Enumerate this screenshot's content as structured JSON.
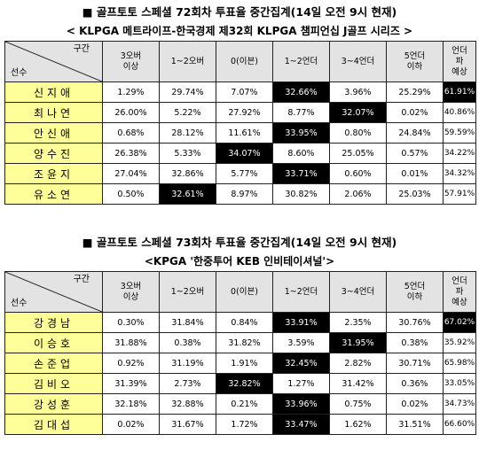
{
  "table1": {
    "title": "■ 골프토토 스페셜 72회차 투표율 중간집계(14일 오전 9시 현재)",
    "subtitle": "< KLPGA 메트라이프-한국경제 제32회 KLPGA 챔피언십 J골프 시리즈 >",
    "corner_top": "구간",
    "corner_bottom": "선수",
    "headers": [
      "3오버\n이상",
      "1~2오버",
      "0(이븐)",
      "1~2언더",
      "3~4언더",
      "5언더\n이하",
      "언더\n파\n예상"
    ],
    "rows": [
      {
        "name": "신지애",
        "values": [
          "1.29%",
          "29.74%",
          "7.07%",
          "32.66%",
          "3.96%",
          "25.29%",
          "61.91%"
        ],
        "highlight": [
          3,
          6
        ]
      },
      {
        "name": "최나연",
        "values": [
          "26.00%",
          "5.22%",
          "27.92%",
          "8.77%",
          "32.07%",
          "0.02%",
          "40.86%"
        ],
        "highlight": [
          4
        ]
      },
      {
        "name": "안신애",
        "values": [
          "0.68%",
          "28.12%",
          "11.61%",
          "33.95%",
          "0.80%",
          "24.84%",
          "59.59%"
        ],
        "highlight": [
          3
        ]
      },
      {
        "name": "양수진",
        "values": [
          "26.38%",
          "5.33%",
          "34.07%",
          "8.60%",
          "25.05%",
          "0.57%",
          "34.22%"
        ],
        "highlight": [
          2
        ]
      },
      {
        "name": "조윤지",
        "values": [
          "27.04%",
          "32.86%",
          "5.77%",
          "33.71%",
          "0.60%",
          "0.01%",
          "34.32%"
        ],
        "highlight": [
          3
        ]
      },
      {
        "name": "유소연",
        "values": [
          "0.50%",
          "32.61%",
          "8.97%",
          "30.82%",
          "2.06%",
          "25.03%",
          "57.91%"
        ],
        "highlight": [
          1
        ]
      }
    ]
  },
  "table2": {
    "title": "■ 골프토토 스페셜 73회차 투표율 중간집계(14일 오전 9시 현재)",
    "subtitle": "<KPGA '한중투어 KEB 인비테이셔널'>",
    "corner_top": "구간",
    "corner_bottom": "선수",
    "headers": [
      "3오버\n이상",
      "1~2오버",
      "0(이븐)",
      "1~2언더",
      "3~4언더",
      "5언더\n이하",
      "언더\n파\n예상"
    ],
    "rows": [
      {
        "name": "강경남",
        "values": [
          "0.30%",
          "31.84%",
          "0.84%",
          "33.91%",
          "2.35%",
          "30.76%",
          "67.02%"
        ],
        "highlight": [
          3,
          6
        ]
      },
      {
        "name": "이승호",
        "values": [
          "31.88%",
          "0.38%",
          "31.82%",
          "3.59%",
          "31.95%",
          "0.38%",
          "35.92%"
        ],
        "highlight": [
          4
        ]
      },
      {
        "name": "손준업",
        "values": [
          "0.92%",
          "31.19%",
          "1.91%",
          "32.45%",
          "2.82%",
          "30.71%",
          "65.98%"
        ],
        "highlight": [
          3
        ]
      },
      {
        "name": "김비오",
        "values": [
          "31.39%",
          "2.73%",
          "32.82%",
          "1.27%",
          "31.42%",
          "0.36%",
          "33.05%"
        ],
        "highlight": [
          2
        ]
      },
      {
        "name": "강성훈",
        "values": [
          "32.18%",
          "32.88%",
          "0.21%",
          "33.96%",
          "0.75%",
          "0.02%",
          "34.73%"
        ],
        "highlight": [
          3
        ]
      },
      {
        "name": "김대섭",
        "values": [
          "0.02%",
          "31.67%",
          "1.72%",
          "33.47%",
          "1.62%",
          "31.51%",
          "66.60%"
        ],
        "highlight": [
          3
        ]
      }
    ]
  }
}
